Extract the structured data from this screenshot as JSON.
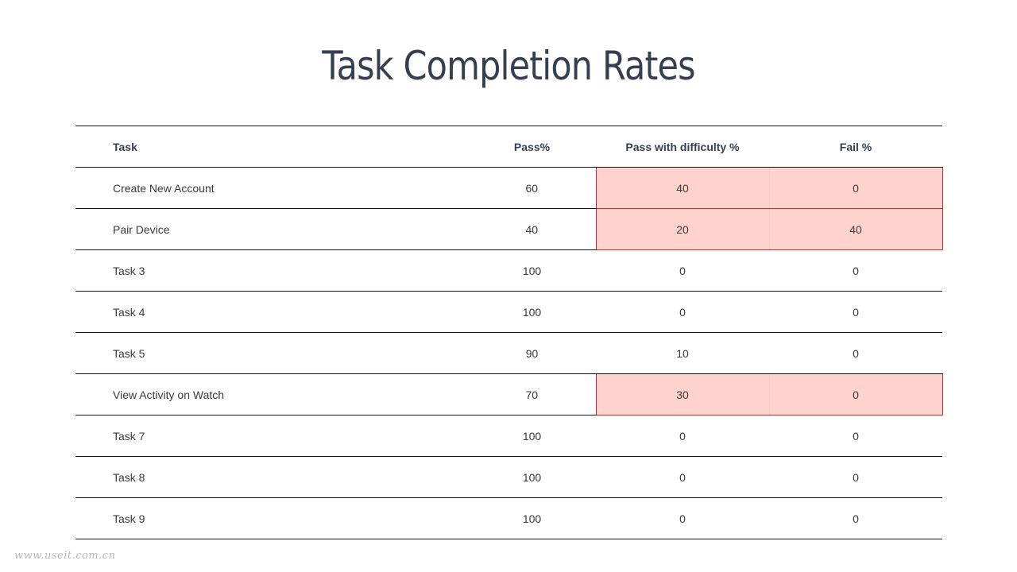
{
  "title": "Task Completion Rates",
  "table": {
    "headers": [
      "Task",
      "Pass%",
      "Pass with difficulty %",
      "Fail %"
    ],
    "rows": [
      {
        "task": "Create New Account",
        "pass": "60",
        "difficulty": "40",
        "fail": "0",
        "highlight": true
      },
      {
        "task": "Pair Device",
        "pass": "40",
        "difficulty": "20",
        "fail": "40",
        "highlight": true
      },
      {
        "task": "Task 3",
        "pass": "100",
        "difficulty": "0",
        "fail": "0",
        "highlight": false
      },
      {
        "task": "Task 4",
        "pass": "100",
        "difficulty": "0",
        "fail": "0",
        "highlight": false
      },
      {
        "task": "Task 5",
        "pass": "90",
        "difficulty": "10",
        "fail": "0",
        "highlight": false
      },
      {
        "task": "View Activity on Watch",
        "pass": "70",
        "difficulty": "30",
        "fail": "0",
        "highlight": true
      },
      {
        "task": "Task 7",
        "pass": "100",
        "difficulty": "0",
        "fail": "0",
        "highlight": false
      },
      {
        "task": "Task 8",
        "pass": "100",
        "difficulty": "0",
        "fail": "0",
        "highlight": false
      },
      {
        "task": "Task 9",
        "pass": "100",
        "difficulty": "0",
        "fail": "0",
        "highlight": false
      }
    ]
  },
  "colors": {
    "title": "#343f50",
    "highlight_fill": "#ffd2cd",
    "highlight_border": "#c0282d"
  },
  "watermark": "www.useit.com.cn"
}
